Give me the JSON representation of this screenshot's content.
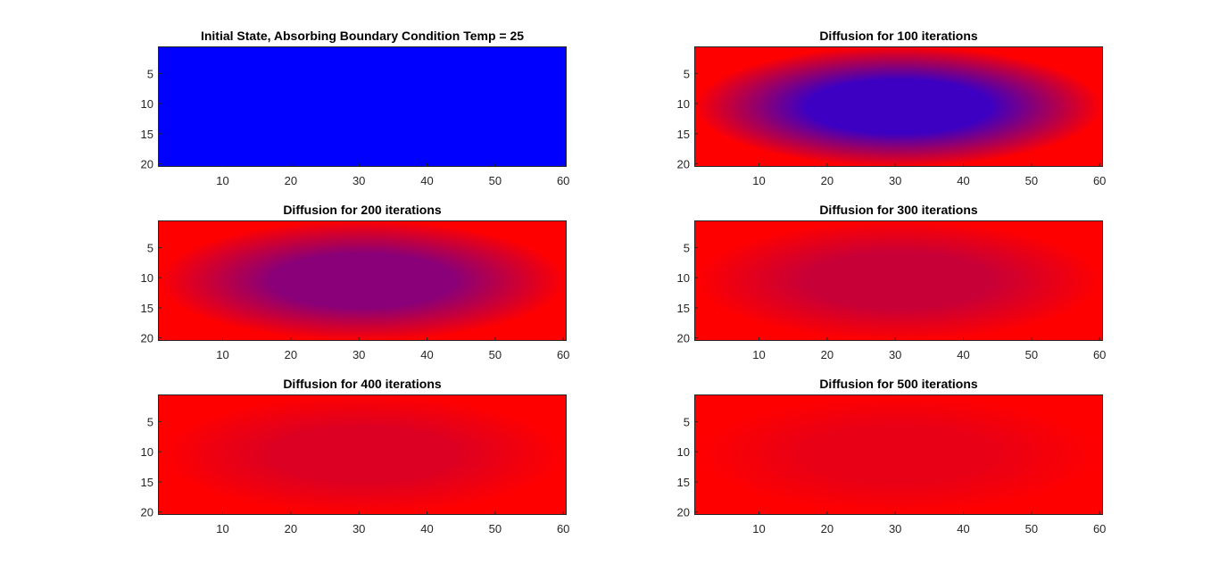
{
  "chart_data": [
    {
      "type": "heatmap",
      "title": "Initial State, Absorbing Boundary Condition Temp = 25",
      "xlim": [
        0.5,
        60.5
      ],
      "ylim": [
        0.5,
        20.5
      ],
      "y_direction": "reversed",
      "xticks": [
        10,
        20,
        30,
        40,
        50,
        60
      ],
      "yticks": [
        5,
        10,
        15,
        20
      ],
      "grid": false,
      "colormap": [
        "#0000ff",
        "#ff0000"
      ],
      "center_color": "#0000ff",
      "edge_color": "#0000ff"
    },
    {
      "type": "heatmap",
      "title": "Diffusion for 100 iterations",
      "xlim": [
        0.5,
        60.5
      ],
      "ylim": [
        0.5,
        20.5
      ],
      "y_direction": "reversed",
      "xticks": [
        10,
        20,
        30,
        40,
        50,
        60
      ],
      "yticks": [
        5,
        10,
        15,
        20
      ],
      "grid": false,
      "colormap": [
        "#0000ff",
        "#ff0000"
      ],
      "center_color": "#3d00c2",
      "edge_color": "#ff0000"
    },
    {
      "type": "heatmap",
      "title": "Diffusion for 200 iterations",
      "xlim": [
        0.5,
        60.5
      ],
      "ylim": [
        0.5,
        20.5
      ],
      "y_direction": "reversed",
      "xticks": [
        10,
        20,
        30,
        40,
        50,
        60
      ],
      "yticks": [
        5,
        10,
        15,
        20
      ],
      "grid": false,
      "colormap": [
        "#0000ff",
        "#ff0000"
      ],
      "center_color": "#8a0078",
      "edge_color": "#ff0000"
    },
    {
      "type": "heatmap",
      "title": "Diffusion for 300 iterations",
      "xlim": [
        0.5,
        60.5
      ],
      "ylim": [
        0.5,
        20.5
      ],
      "y_direction": "reversed",
      "xticks": [
        10,
        20,
        30,
        40,
        50,
        60
      ],
      "yticks": [
        5,
        10,
        15,
        20
      ],
      "grid": false,
      "colormap": [
        "#0000ff",
        "#ff0000"
      ],
      "center_color": "#c70038",
      "edge_color": "#ff0000"
    },
    {
      "type": "heatmap",
      "title": "Diffusion for 400 iterations",
      "xlim": [
        0.5,
        60.5
      ],
      "ylim": [
        0.5,
        20.5
      ],
      "y_direction": "reversed",
      "xticks": [
        10,
        20,
        30,
        40,
        50,
        60
      ],
      "yticks": [
        5,
        10,
        15,
        20
      ],
      "grid": false,
      "colormap": [
        "#0000ff",
        "#ff0000"
      ],
      "center_color": "#dc0022",
      "edge_color": "#ff0000"
    },
    {
      "type": "heatmap",
      "title": "Diffusion for 500 iterations",
      "xlim": [
        0.5,
        60.5
      ],
      "ylim": [
        0.5,
        20.5
      ],
      "y_direction": "reversed",
      "xticks": [
        10,
        20,
        30,
        40,
        50,
        60
      ],
      "yticks": [
        5,
        10,
        15,
        20
      ],
      "grid": false,
      "colormap": [
        "#0000ff",
        "#ff0000"
      ],
      "center_color": "#e80016",
      "edge_color": "#ff0000"
    }
  ]
}
